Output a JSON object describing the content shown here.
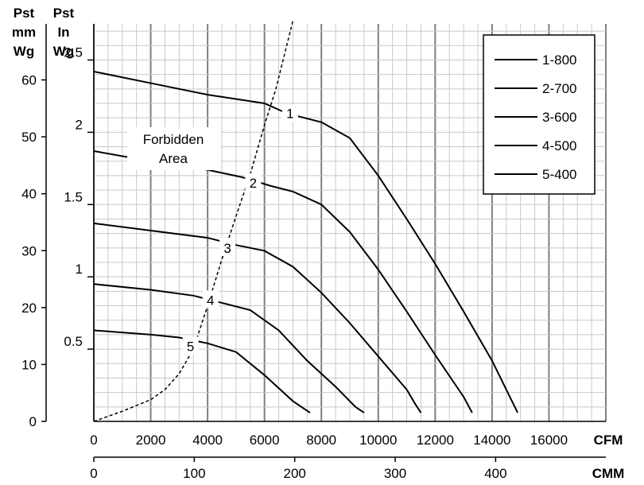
{
  "chart_data": {
    "type": "line",
    "x_primary": {
      "unit": "CFM",
      "ticks": [
        "0",
        "2000",
        "4000",
        "6000",
        "8000",
        "10000",
        "12000",
        "14000",
        "16000"
      ],
      "range": [
        0,
        18000
      ]
    },
    "x_secondary": {
      "unit": "CMM",
      "ticks": [
        "0",
        "100",
        "200",
        "300",
        "400"
      ]
    },
    "y_left": {
      "label": [
        "Pst",
        "mm",
        "Wg"
      ],
      "ticks": [
        "0",
        "10",
        "20",
        "30",
        "40",
        "50",
        "60"
      ]
    },
    "y_right": {
      "label": [
        "Pst",
        "In",
        "Wg"
      ],
      "ticks": [
        "0.5",
        "1",
        "1.5",
        "2",
        "2.5"
      ],
      "range": [
        0,
        2.75
      ]
    },
    "grid": true,
    "legend_position": "top-right",
    "colors": {
      "line": "#000000",
      "grid_major": "#808080",
      "grid_minor": "#c8c8c8"
    },
    "series": [
      {
        "name": "1-800",
        "marker": "1",
        "points": [
          [
            0,
            2.42
          ],
          [
            2000,
            2.34
          ],
          [
            4000,
            2.26
          ],
          [
            6000,
            2.2
          ],
          [
            6800,
            2.13
          ],
          [
            8000,
            2.07
          ],
          [
            9000,
            1.96
          ],
          [
            10000,
            1.7
          ],
          [
            11000,
            1.4
          ],
          [
            12000,
            1.09
          ],
          [
            13000,
            0.76
          ],
          [
            14000,
            0.42
          ],
          [
            14900,
            0.06
          ]
        ]
      },
      {
        "name": "2-700",
        "marker": "2",
        "points": [
          [
            0,
            1.87
          ],
          [
            2000,
            1.8
          ],
          [
            4000,
            1.74
          ],
          [
            5200,
            1.69
          ],
          [
            6200,
            1.63
          ],
          [
            7000,
            1.59
          ],
          [
            8000,
            1.5
          ],
          [
            9000,
            1.31
          ],
          [
            10000,
            1.05
          ],
          [
            11000,
            0.76
          ],
          [
            12000,
            0.46
          ],
          [
            13000,
            0.17
          ],
          [
            13300,
            0.06
          ]
        ]
      },
      {
        "name": "3-600",
        "marker": "3",
        "points": [
          [
            0,
            1.37
          ],
          [
            2000,
            1.32
          ],
          [
            4000,
            1.27
          ],
          [
            5000,
            1.22
          ],
          [
            6000,
            1.18
          ],
          [
            7000,
            1.07
          ],
          [
            8000,
            0.89
          ],
          [
            9000,
            0.68
          ],
          [
            10000,
            0.45
          ],
          [
            11000,
            0.22
          ],
          [
            11300,
            0.12
          ],
          [
            11500,
            0.06
          ]
        ]
      },
      {
        "name": "4-500",
        "marker": "4",
        "points": [
          [
            0,
            0.95
          ],
          [
            2000,
            0.91
          ],
          [
            3500,
            0.87
          ],
          [
            4500,
            0.82
          ],
          [
            5500,
            0.77
          ],
          [
            6500,
            0.63
          ],
          [
            7500,
            0.42
          ],
          [
            8500,
            0.24
          ],
          [
            9200,
            0.1
          ],
          [
            9500,
            0.06
          ]
        ]
      },
      {
        "name": "5-400",
        "marker": "5",
        "points": [
          [
            0,
            0.63
          ],
          [
            2000,
            0.6
          ],
          [
            3000,
            0.58
          ],
          [
            4000,
            0.54
          ],
          [
            5000,
            0.48
          ],
          [
            6000,
            0.32
          ],
          [
            7000,
            0.14
          ],
          [
            7600,
            0.06
          ]
        ]
      }
    ],
    "boundary": {
      "style": "dashed",
      "points": [
        [
          0,
          0.0
        ],
        [
          1000,
          0.07
        ],
        [
          2000,
          0.15
        ],
        [
          2500,
          0.22
        ],
        [
          3000,
          0.33
        ],
        [
          3500,
          0.5
        ],
        [
          4000,
          0.8
        ],
        [
          4500,
          1.12
        ],
        [
          5000,
          1.42
        ],
        [
          5500,
          1.71
        ],
        [
          6000,
          2.05
        ],
        [
          6400,
          2.3
        ],
        [
          7000,
          2.78
        ]
      ]
    },
    "annotation": [
      "Forbidden",
      "Area"
    ],
    "legend": [
      "1-800",
      "2-700",
      "3-600",
      "4-500",
      "5-400"
    ]
  }
}
